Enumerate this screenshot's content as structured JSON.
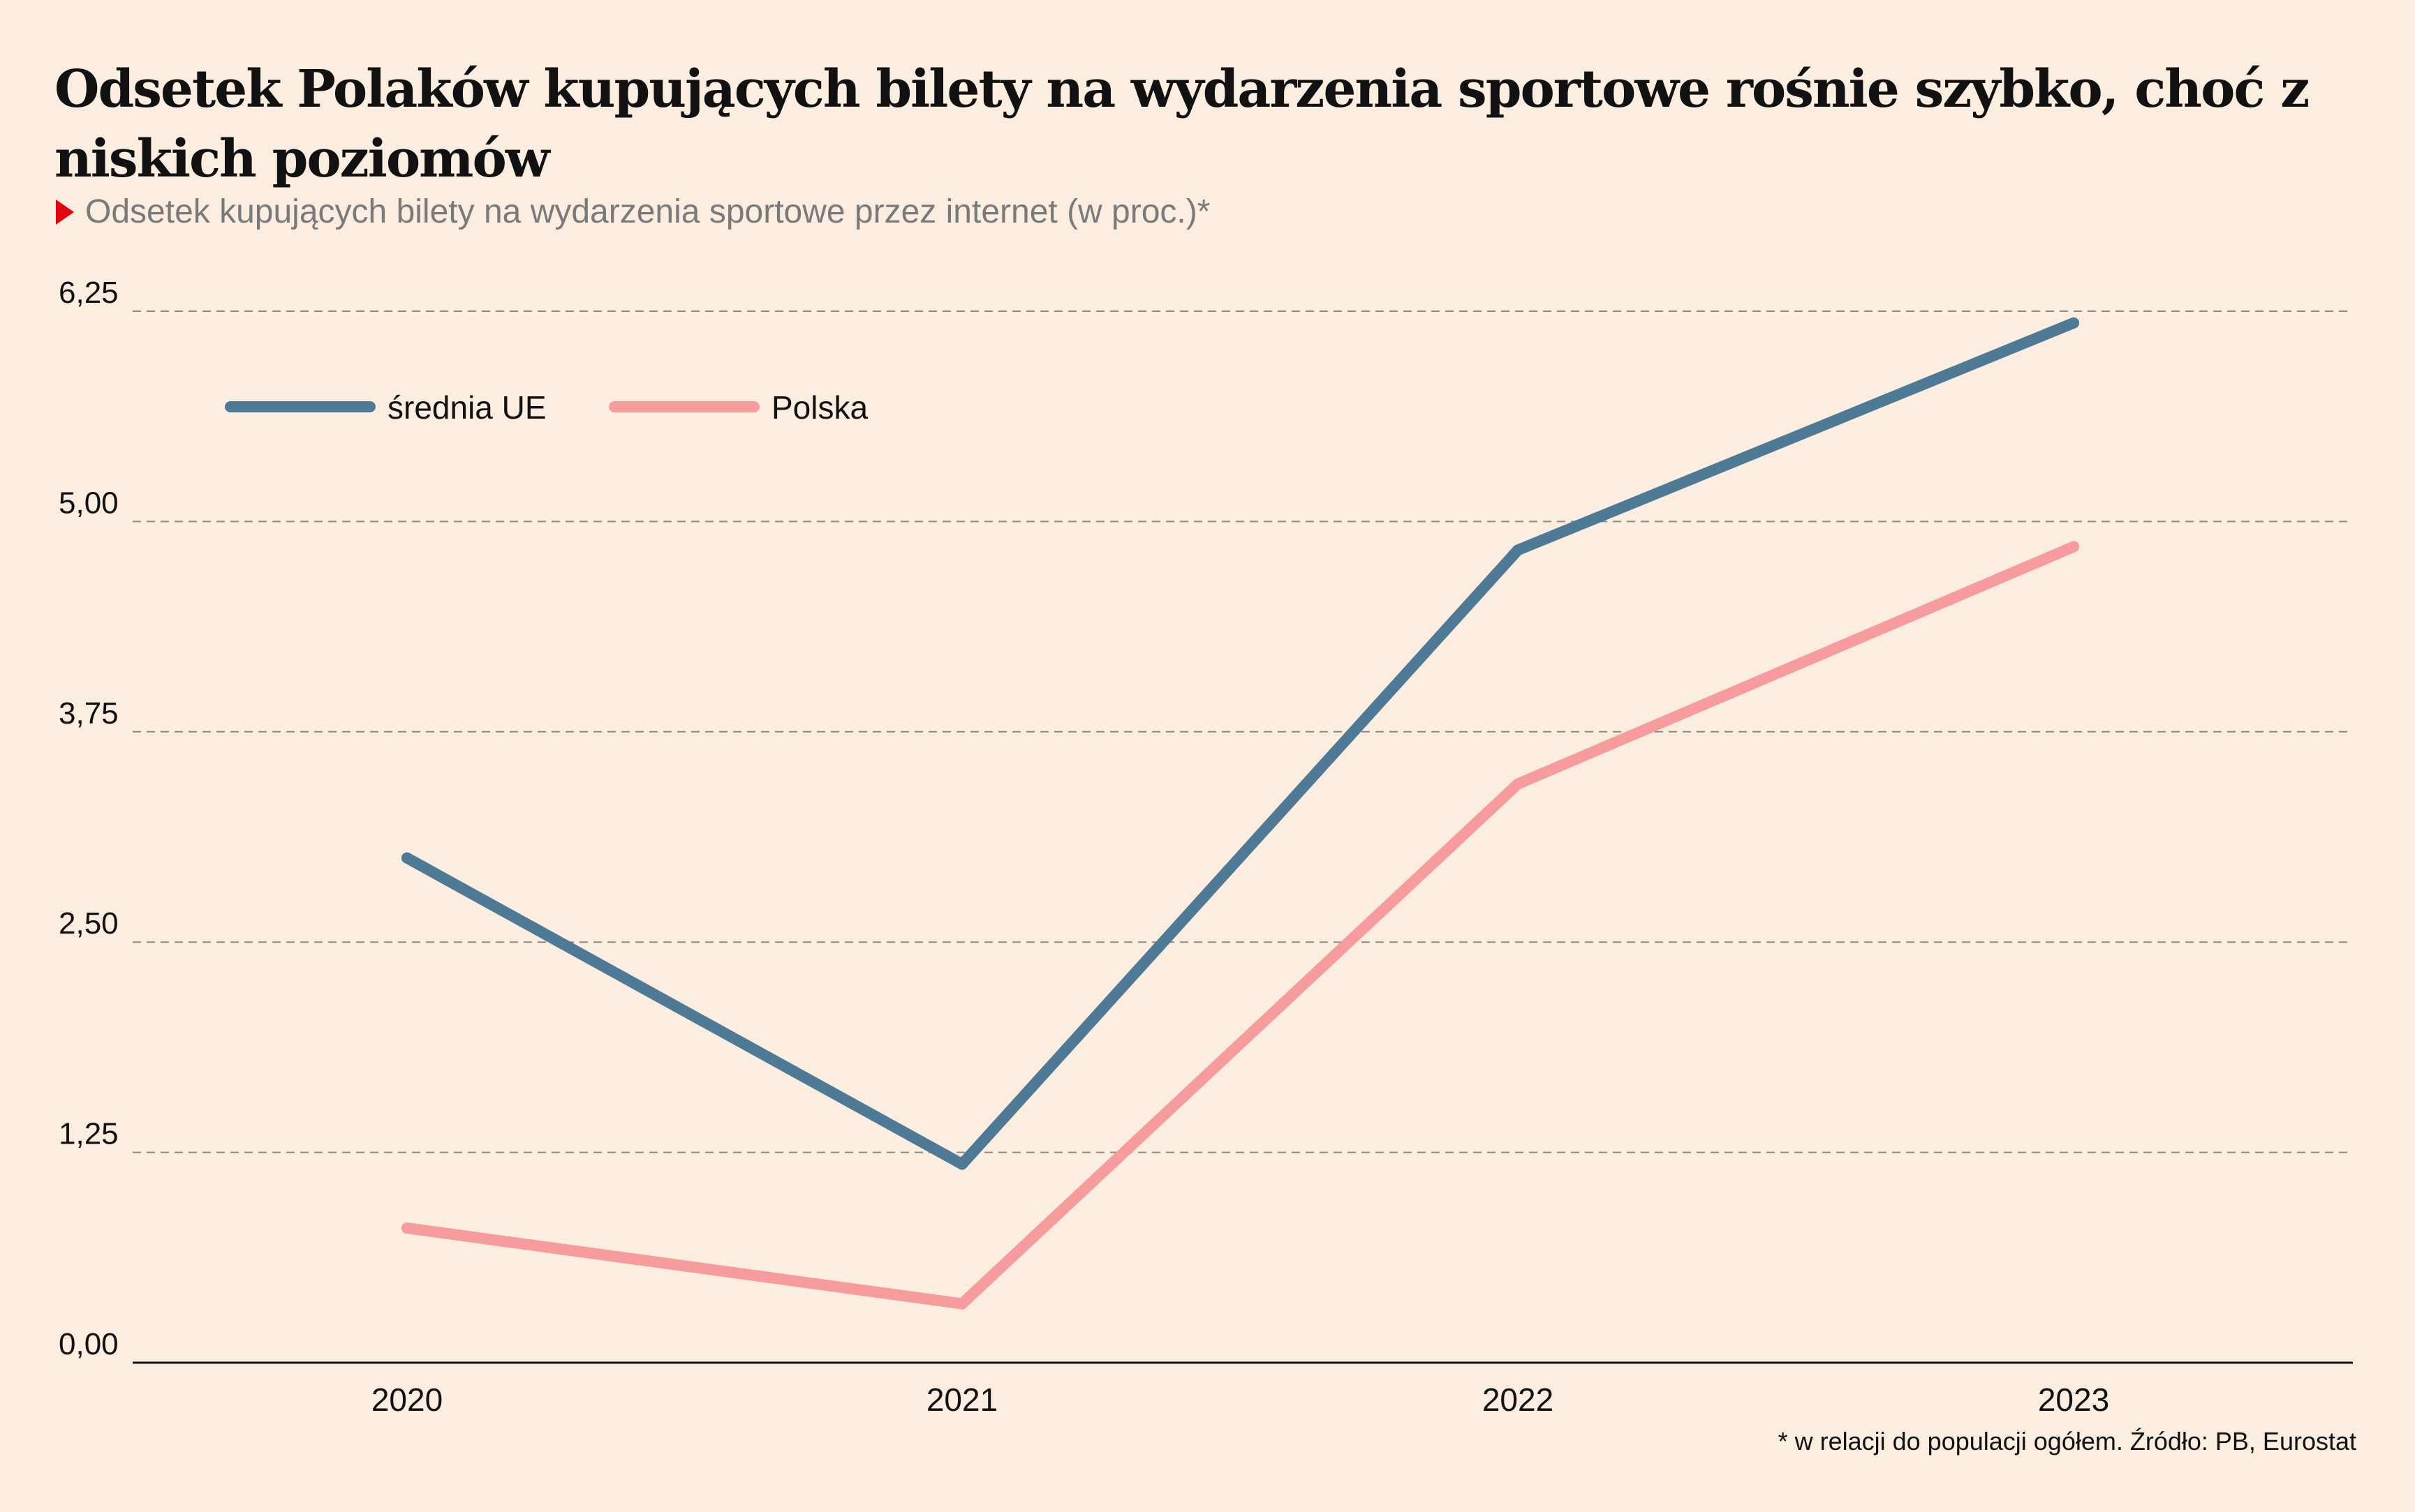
{
  "title": "Odsetek Polaków kupujących bilety na wydarzenia sportowe rośnie szybko, choć z niskich poziomów",
  "subtitle": "Odsetek kupujących bilety na wydarzenia sportowe przez internet (w proc.)*",
  "footnote": "* w relacji do populacji ogółem. Źródło: PB, Eurostat",
  "colors": {
    "background": "#fbeee1",
    "eu": "#4f7a96",
    "pl": "#f79c9c",
    "marker": "#e3000f",
    "grid": "#8a8a8a",
    "axis": "#111111"
  },
  "chart_data": {
    "type": "line",
    "categories": [
      "2020",
      "2021",
      "2022",
      "2023"
    ],
    "y_ticks": [
      "0,00",
      "1,25",
      "2,50",
      "3,75",
      "5,00",
      "6,25"
    ],
    "y_tick_values": [
      0,
      1.25,
      2.5,
      3.75,
      5.0,
      6.25
    ],
    "ylim": [
      0,
      6.25
    ],
    "grid": "horizontal dashed",
    "legend_position": "top-left",
    "xlabel": "",
    "ylabel": "",
    "series": [
      {
        "name": "średnia UE",
        "values": [
          3.0,
          1.18,
          4.83,
          6.18
        ]
      },
      {
        "name": "Polska",
        "values": [
          0.8,
          0.35,
          3.44,
          4.85
        ]
      }
    ]
  }
}
